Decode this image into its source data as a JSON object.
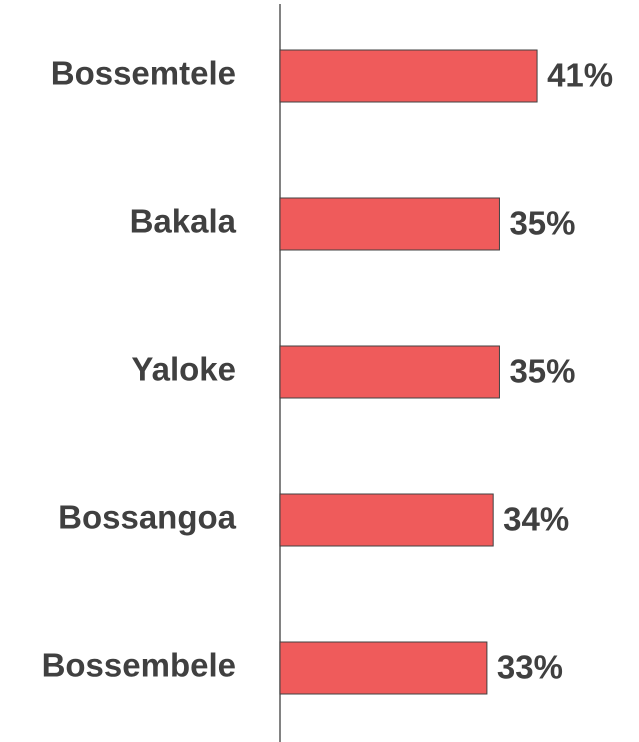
{
  "chart_data": {
    "type": "bar",
    "orientation": "horizontal",
    "categories": [
      "Bossemtele",
      "Bakala",
      "Yaloke",
      "Bossangoa",
      "Bossembele"
    ],
    "values": [
      41,
      35,
      35,
      34,
      33
    ],
    "value_labels": [
      "41%",
      "35%",
      "35%",
      "34%",
      "33%"
    ],
    "color": "#ef5b5b"
  }
}
